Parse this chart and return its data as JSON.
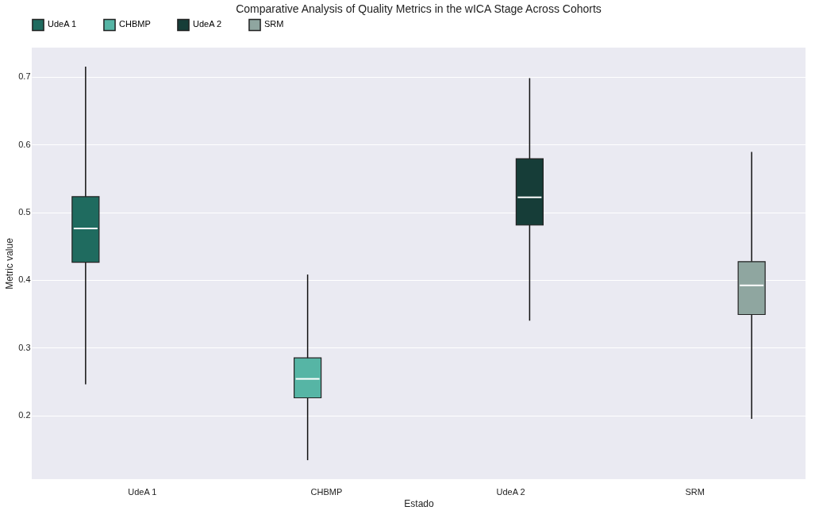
{
  "chart_data": {
    "type": "box",
    "title": "Comparative Analysis of Quality Metrics in the wICA Stage Across Cohorts",
    "xlabel": "Estado",
    "ylabel": "Metric value",
    "categories": [
      "UdeA 1",
      "CHBMP",
      "UdeA 2",
      "SRM"
    ],
    "series": [
      {
        "name": "UdeA 1",
        "color": "#1f6b5f",
        "boxes": [
          {
            "low": 0.246,
            "q1": 0.426,
            "median": 0.476,
            "q3": 0.523,
            "high": 0.715
          },
          null,
          null,
          null
        ]
      },
      {
        "name": "CHBMP",
        "color": "#56b5a5",
        "boxes": [
          null,
          {
            "low": 0.134,
            "q1": 0.226,
            "median": 0.254,
            "q3": 0.285,
            "high": 0.408
          },
          null,
          null
        ]
      },
      {
        "name": "UdeA 2",
        "color": "#163d38",
        "boxes": [
          null,
          null,
          {
            "low": 0.34,
            "q1": 0.481,
            "median": 0.522,
            "q3": 0.579,
            "high": 0.698
          },
          null
        ]
      },
      {
        "name": "SRM",
        "color": "#8fa6a0",
        "boxes": [
          null,
          null,
          null,
          {
            "low": 0.195,
            "q1": 0.349,
            "median": 0.392,
            "q3": 0.427,
            "high": 0.589
          }
        ]
      }
    ],
    "ylim": [
      0.106,
      0.743
    ],
    "yticks": [
      0.2,
      0.3,
      0.4,
      0.5,
      0.6,
      0.7
    ],
    "grid": "y",
    "legend": "top"
  }
}
